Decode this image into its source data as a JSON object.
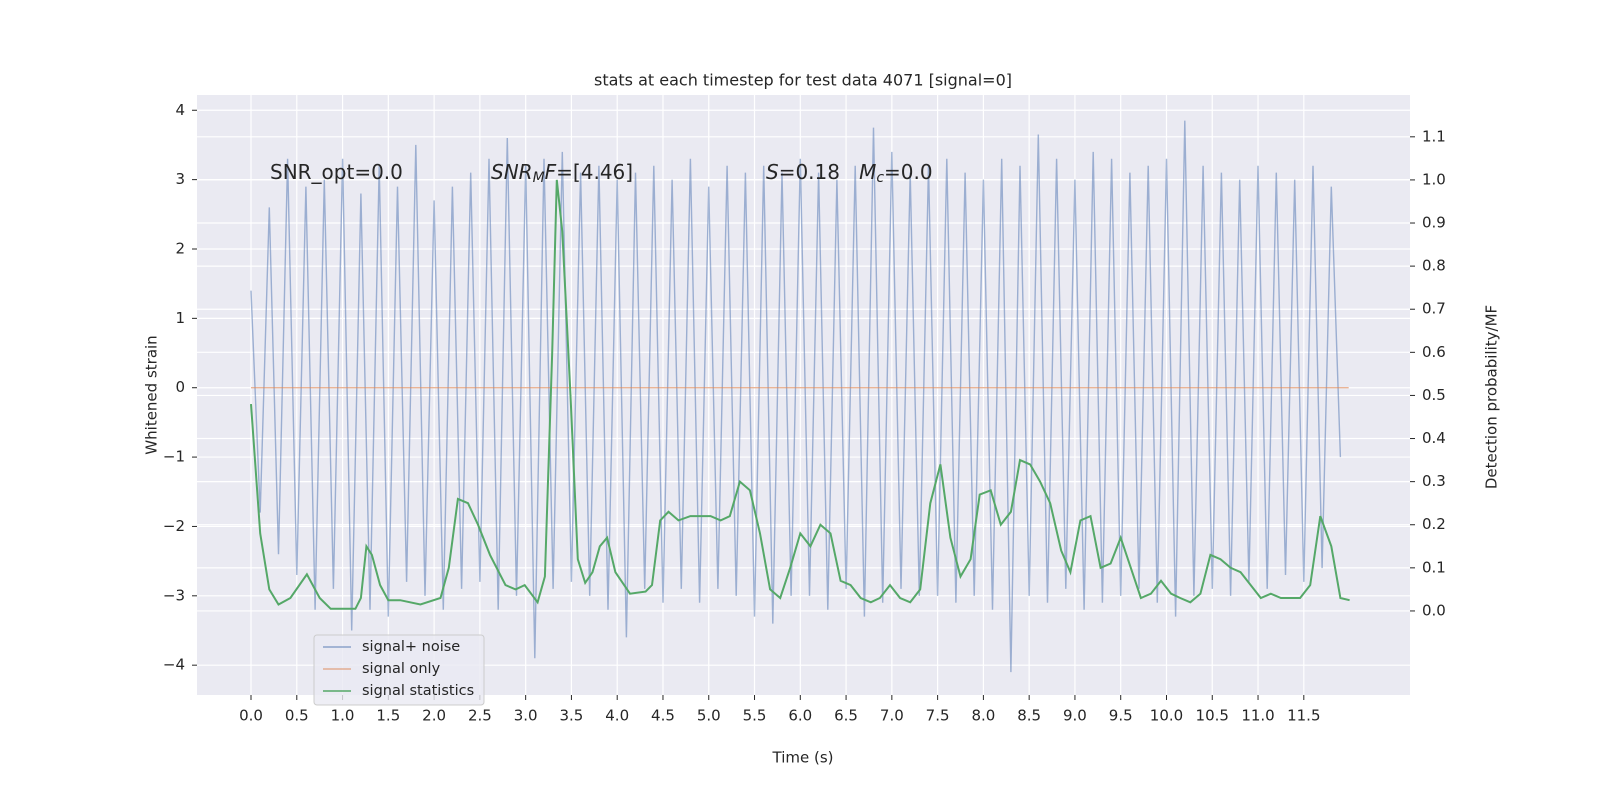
{
  "chart_data": {
    "type": "line",
    "title": "stats at each timestep for test data 4071 [signal=0]",
    "xlabel": "Time (s)",
    "ylabel": "Whitened strain",
    "y2label": "Detection probability/MF",
    "xlim": [
      -0.59,
      12.66
    ],
    "ylim": [
      -4.43,
      4.22
    ],
    "y2lim": [
      -0.195,
      1.197
    ],
    "xticks": [
      {
        "value": 0,
        "label": "0.0"
      },
      0.5,
      {
        "value": 1,
        "label": "1.0"
      },
      1.5,
      {
        "value": 2,
        "label": "2.0"
      },
      2.5,
      {
        "value": 3,
        "label": "3.0"
      },
      3.5,
      {
        "value": 4,
        "label": "4.0"
      },
      4.5,
      {
        "value": 5,
        "label": "5.0"
      },
      5.5,
      {
        "value": 6,
        "label": "6.0"
      },
      6.5,
      {
        "value": 7,
        "label": "7.0"
      },
      7.5,
      {
        "value": 8,
        "label": "8.0"
      },
      8.5,
      {
        "value": 9,
        "label": "9.0"
      },
      9.5,
      {
        "value": 10,
        "label": "10.0"
      },
      10.5,
      {
        "value": 11,
        "label": "11.0"
      },
      11.5
    ],
    "yticks": [
      {
        "value": -4,
        "label": "−4"
      },
      {
        "value": -3,
        "label": "−3"
      },
      {
        "value": -2,
        "label": "−2"
      },
      {
        "value": -1,
        "label": "−1"
      },
      0,
      1,
      2,
      3,
      4
    ],
    "y2ticks": [
      {
        "value": 0,
        "label": "0.0"
      },
      0.1,
      0.2,
      0.3,
      0.4,
      0.5,
      0.6,
      0.7,
      0.8,
      0.9,
      {
        "value": 1,
        "label": "1.0"
      },
      1.1
    ],
    "grid": true,
    "legend": "lower left",
    "annotations": [
      [
        {
          "text": "SNR_opt=0.0"
        }
      ],
      [
        {
          "text": "SNR",
          "style": "italic"
        },
        {
          "text": "M",
          "style": "italic-sub"
        },
        {
          "text": "F",
          "style": "italic"
        },
        {
          "text": "=[4.46]"
        }
      ],
      [
        {
          "text": "S",
          "style": "italic"
        },
        {
          "text": "=0.18   "
        },
        {
          "text": "M",
          "style": "italic"
        },
        {
          "text": "c",
          "style": "italic-sub"
        },
        {
          "text": "=0.0"
        }
      ]
    ],
    "series": [
      {
        "name": "signal+ noise",
        "color": "#4c72b0",
        "x": [
          0.0,
          0.1,
          0.2,
          0.3,
          0.4,
          0.5,
          0.6,
          0.7,
          0.8,
          0.9,
          1.0,
          1.1,
          1.2,
          1.3,
          1.4,
          1.5,
          1.6,
          1.7,
          1.8,
          1.9,
          2.0,
          2.1,
          2.2,
          2.3,
          2.4,
          2.5,
          2.6,
          2.7,
          2.8,
          2.9,
          3.0,
          3.1,
          3.2,
          3.3,
          3.4,
          3.5,
          3.6,
          3.7,
          3.8,
          3.9,
          4.0,
          4.1,
          4.2,
          4.3,
          4.4,
          4.5,
          4.6,
          4.7,
          4.8,
          4.9,
          5.0,
          5.1,
          5.2,
          5.3,
          5.4,
          5.5,
          5.6,
          5.7,
          5.8,
          5.9,
          6.0,
          6.1,
          6.2,
          6.3,
          6.4,
          6.5,
          6.6,
          6.7,
          6.8,
          6.9,
          7.0,
          7.1,
          7.2,
          7.3,
          7.4,
          7.5,
          7.6,
          7.7,
          7.8,
          7.9,
          8.0,
          8.1,
          8.2,
          8.3,
          8.4,
          8.5,
          8.6,
          8.7,
          8.8,
          8.9,
          9.0,
          9.1,
          9.2,
          9.3,
          9.4,
          9.5,
          9.6,
          9.7,
          9.8,
          9.9,
          10.0,
          10.1,
          10.2,
          10.3,
          10.4,
          10.5,
          10.6,
          10.7,
          10.8,
          10.9,
          11.0,
          11.1,
          11.2,
          11.3,
          11.4,
          11.5,
          11.6,
          11.7,
          11.8,
          11.9
        ],
        "values": [
          1.4,
          -1.8,
          2.6,
          -2.4,
          3.3,
          -2.7,
          2.9,
          -3.2,
          3.0,
          -2.9,
          3.3,
          -3.5,
          2.8,
          -3.2,
          3.2,
          -3.3,
          2.9,
          -2.8,
          3.5,
          -3.0,
          2.7,
          -3.2,
          2.9,
          -2.9,
          3.1,
          -2.8,
          3.3,
          -3.2,
          3.6,
          -3.0,
          3.2,
          -3.9,
          3.3,
          -2.9,
          3.4,
          -2.8,
          3.1,
          -3.0,
          3.2,
          -3.2,
          3.0,
          -3.6,
          3.1,
          -2.9,
          3.2,
          -3.1,
          3.0,
          -2.9,
          3.3,
          -3.1,
          2.9,
          -2.9,
          3.2,
          -3.0,
          3.1,
          -3.3,
          3.2,
          -3.4,
          3.1,
          -3.0,
          3.3,
          -3.0,
          3.1,
          -3.2,
          3.0,
          -2.9,
          3.2,
          -3.3,
          3.75,
          -3.1,
          3.4,
          -2.9,
          3.1,
          -3.0,
          3.2,
          -3.0,
          3.3,
          -3.1,
          3.1,
          -3.0,
          3.0,
          -3.2,
          3.3,
          -4.1,
          3.2,
          -3.0,
          3.65,
          -3.1,
          3.3,
          -2.9,
          3.0,
          -3.2,
          3.4,
          -3.1,
          3.3,
          -3.0,
          3.1,
          -2.9,
          3.2,
          -3.1,
          3.3,
          -3.3,
          3.85,
          -3.0,
          3.2,
          -2.9,
          3.1,
          -3.0,
          3.0,
          -2.8,
          3.2,
          -2.9,
          3.1,
          -2.7,
          3.0,
          -2.8,
          3.2,
          -2.6,
          2.9,
          -1.0
        ]
      },
      {
        "name": "signal only",
        "color": "#dd8452",
        "x": [
          0.0,
          11.99
        ],
        "values": [
          0,
          0
        ]
      },
      {
        "name": "signal statistics",
        "color": "#55a868",
        "axis": "y2",
        "x": [
          0.0,
          0.1,
          0.2,
          0.3,
          0.43,
          0.61,
          0.75,
          0.87,
          0.97,
          1.14,
          1.2,
          1.26,
          1.32,
          1.41,
          1.5,
          1.63,
          1.85,
          2.07,
          2.16,
          2.26,
          2.37,
          2.48,
          2.61,
          2.78,
          2.89,
          2.99,
          3.13,
          3.21,
          3.29,
          3.34,
          3.4,
          3.49,
          3.57,
          3.65,
          3.73,
          3.81,
          3.89,
          3.98,
          4.14,
          4.31,
          4.38,
          4.47,
          4.56,
          4.67,
          4.8,
          4.91,
          5.02,
          5.13,
          5.23,
          5.34,
          5.45,
          5.56,
          5.67,
          5.78,
          5.89,
          6.0,
          6.11,
          6.22,
          6.33,
          6.44,
          6.55,
          6.66,
          6.77,
          6.87,
          6.98,
          7.09,
          7.2,
          7.31,
          7.42,
          7.53,
          7.64,
          7.75,
          7.86,
          7.96,
          8.08,
          8.19,
          8.3,
          8.4,
          8.51,
          8.62,
          8.73,
          8.85,
          8.95,
          9.06,
          9.17,
          9.28,
          9.39,
          9.5,
          9.61,
          9.72,
          9.83,
          9.94,
          10.05,
          10.15,
          10.26,
          10.37,
          10.48,
          10.59,
          10.7,
          10.81,
          10.92,
          11.03,
          11.14,
          11.25,
          11.36,
          11.46,
          11.57,
          11.68,
          11.8,
          11.9,
          12.0
        ],
        "values": [
          0.48,
          0.18,
          0.05,
          0.015,
          0.03,
          0.085,
          0.03,
          0.005,
          0.005,
          0.005,
          0.03,
          0.15,
          0.13,
          0.06,
          0.025,
          0.025,
          0.015,
          0.03,
          0.1,
          0.26,
          0.25,
          0.2,
          0.13,
          0.06,
          0.05,
          0.06,
          0.02,
          0.08,
          0.6,
          1.0,
          0.88,
          0.5,
          0.12,
          0.065,
          0.09,
          0.15,
          0.17,
          0.09,
          0.04,
          0.045,
          0.06,
          0.21,
          0.23,
          0.21,
          0.22,
          0.22,
          0.22,
          0.21,
          0.22,
          0.3,
          0.28,
          0.18,
          0.05,
          0.03,
          0.1,
          0.18,
          0.15,
          0.2,
          0.18,
          0.07,
          0.06,
          0.03,
          0.02,
          0.03,
          0.06,
          0.03,
          0.02,
          0.05,
          0.25,
          0.34,
          0.17,
          0.08,
          0.12,
          0.27,
          0.28,
          0.2,
          0.23,
          0.35,
          0.34,
          0.3,
          0.25,
          0.14,
          0.09,
          0.21,
          0.22,
          0.1,
          0.11,
          0.17,
          0.1,
          0.03,
          0.04,
          0.07,
          0.04,
          0.03,
          0.02,
          0.04,
          0.13,
          0.12,
          0.1,
          0.09,
          0.06,
          0.03,
          0.04,
          0.03,
          0.03,
          0.03,
          0.06,
          0.22,
          0.15,
          0.03,
          0.025
        ]
      }
    ]
  }
}
